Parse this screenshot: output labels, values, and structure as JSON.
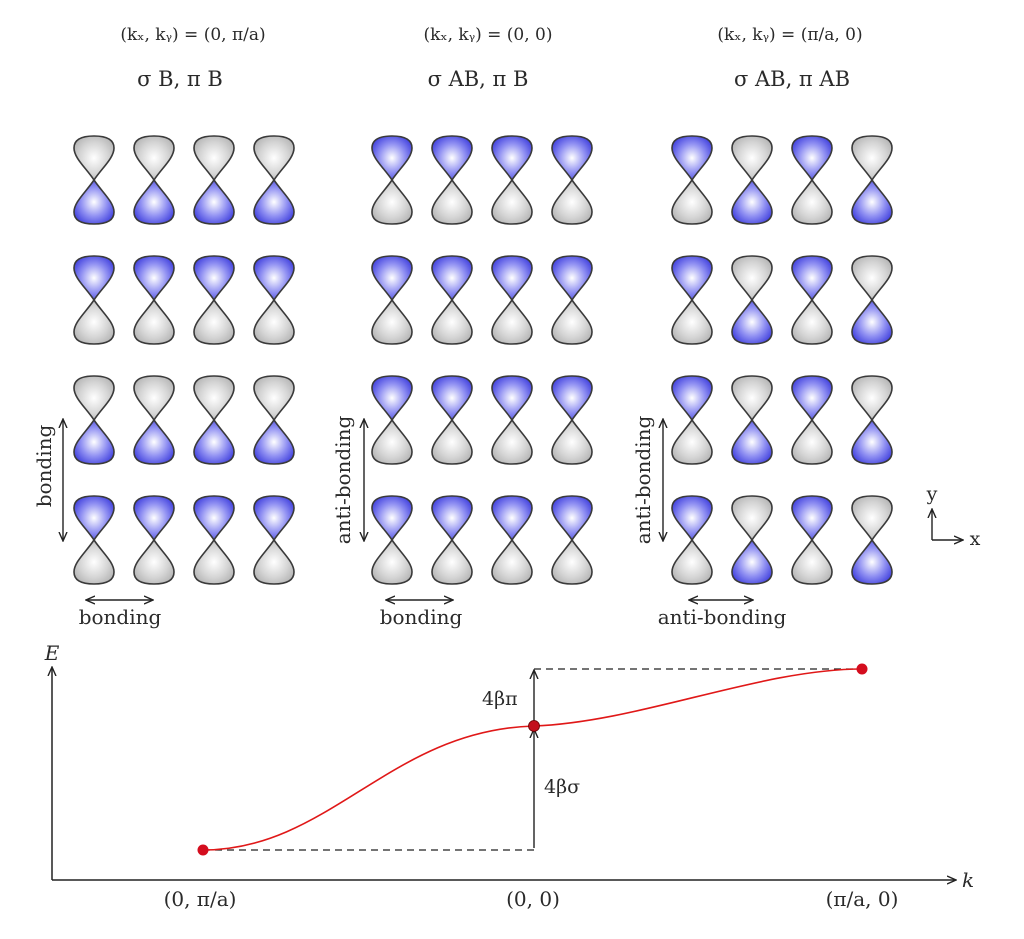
{
  "panels": [
    {
      "k_label": "(kₓ, kᵧ) = (0, π/a)",
      "title": "σ B, π B",
      "vertical_label": "bonding",
      "horizontal_label": "bonding",
      "rows": [
        [
          "gray-top",
          "gray-top",
          "gray-top",
          "gray-top"
        ],
        [
          "blue-top",
          "blue-top",
          "blue-top",
          "blue-top"
        ],
        [
          "gray-top",
          "gray-top",
          "gray-top",
          "gray-top"
        ],
        [
          "blue-top",
          "blue-top",
          "blue-top",
          "blue-top"
        ]
      ]
    },
    {
      "k_label": "(kₓ, kᵧ) = (0, 0)",
      "title": "σ AB, π B",
      "vertical_label": "anti-bonding",
      "horizontal_label": "bonding",
      "rows": [
        [
          "blue-top",
          "blue-top",
          "blue-top",
          "blue-top"
        ],
        [
          "blue-top",
          "blue-top",
          "blue-top",
          "blue-top"
        ],
        [
          "blue-top",
          "blue-top",
          "blue-top",
          "blue-top"
        ],
        [
          "blue-top",
          "blue-top",
          "blue-top",
          "blue-top"
        ]
      ]
    },
    {
      "k_label": "(kₓ, kᵧ) = (π/a, 0)",
      "title": "σ AB, π AB",
      "vertical_label": "anti-bonding",
      "horizontal_label": "anti-bonding",
      "rows": [
        [
          "blue-top",
          "gray-top",
          "blue-top",
          "gray-top"
        ],
        [
          "blue-top",
          "gray-top",
          "blue-top",
          "gray-top"
        ],
        [
          "blue-top",
          "gray-top",
          "blue-top",
          "gray-top"
        ],
        [
          "blue-top",
          "gray-top",
          "blue-top",
          "gray-top"
        ]
      ]
    }
  ],
  "axes_legend": {
    "x": "x",
    "y": "y"
  },
  "energy_plot": {
    "y_axis_label": "E",
    "x_axis_label": "k",
    "points": [
      {
        "label": "(0, π/a)",
        "rel_energy": 0
      },
      {
        "label": "(0, 0)",
        "rel_energy": 1
      },
      {
        "label": "(π/a, 0)",
        "rel_energy": 1.5
      }
    ],
    "gap_labels": {
      "sigma": "4βσ",
      "pi": "4βπ"
    }
  },
  "colors": {
    "blue_lobe": "#5b5be8",
    "gray_lobe": "#cfcfcf",
    "curve": "#e01818",
    "point": "#d40d1e"
  }
}
